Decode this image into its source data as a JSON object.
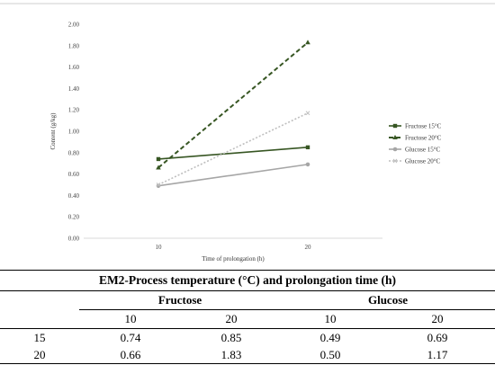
{
  "chart_data": {
    "type": "line",
    "title": "",
    "xlabel": "Time of prolongation (h)",
    "ylabel": "Content (g/kg)",
    "categories": [
      "10",
      "20"
    ],
    "ylim": [
      0,
      2
    ],
    "yticks": [
      "0.00",
      "0.20",
      "0.40",
      "0.60",
      "0.80",
      "1.00",
      "1.20",
      "1.40",
      "1.60",
      "1.80",
      "2.00"
    ],
    "grid": false,
    "legend_position": "right",
    "series": [
      {
        "name": "Fructose 15°C",
        "values": [
          0.74,
          0.85
        ],
        "color": "#375623",
        "style": "solid",
        "marker": "square"
      },
      {
        "name": "Fructose 20°C",
        "values": [
          0.66,
          1.83
        ],
        "color": "#375623",
        "style": "dashed",
        "marker": "triangle"
      },
      {
        "name": "Glucose 15°C",
        "values": [
          0.49,
          0.69
        ],
        "color": "#a6a6a6",
        "style": "solid",
        "marker": "circle"
      },
      {
        "name": "Glucose 20°C",
        "values": [
          0.5,
          1.17
        ],
        "color": "#bfbfbf",
        "style": "dotted",
        "marker": "x"
      }
    ]
  },
  "table": {
    "caption": "EM2-Process temperature (°C) and prolongation time (h)",
    "groups": [
      "Fructose",
      "Glucose"
    ],
    "subheaders": [
      "10",
      "20",
      "10",
      "20"
    ],
    "rows": [
      {
        "label": "15",
        "values": [
          "0.74",
          "0.85",
          "0.49",
          "0.69"
        ]
      },
      {
        "label": "20",
        "values": [
          "0.66",
          "1.83",
          "0.50",
          "1.17"
        ]
      }
    ]
  }
}
